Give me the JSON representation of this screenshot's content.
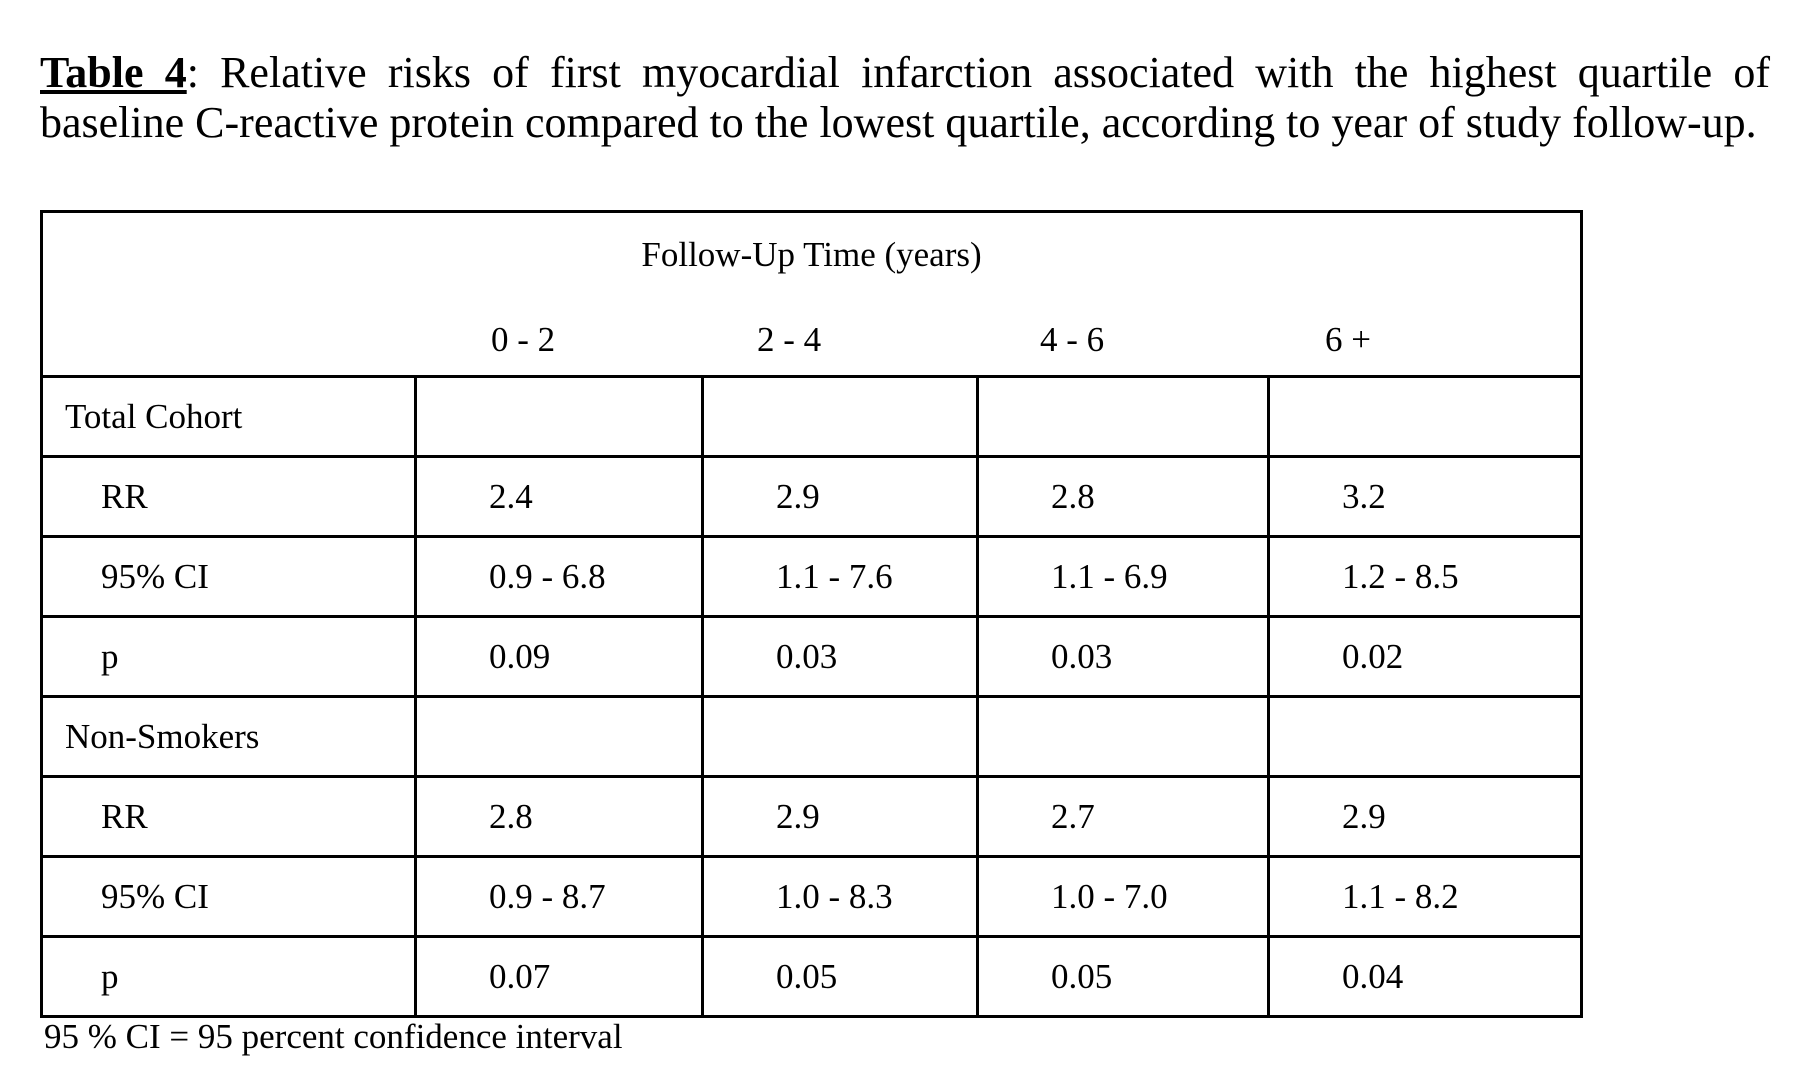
{
  "caption": {
    "label": "Table 4",
    "text": ":  Relative risks of first myocardial infarction associated with the highest quartile of baseline C-reactive protein compared to the lowest quartile, according to year of study follow-up."
  },
  "table": {
    "header": "Follow-Up Time (years)",
    "periods": [
      "0 - 2",
      "2 - 4",
      "4 - 6",
      "6 +"
    ],
    "rows": [
      {
        "label": "Total Cohort",
        "values": [
          "",
          "",
          "",
          ""
        ]
      },
      {
        "label": "RR",
        "values": [
          "2.4",
          "2.9",
          "2.8",
          "3.2"
        ]
      },
      {
        "label": "95% CI",
        "values": [
          "0.9 - 6.8",
          "1.1 - 7.6",
          "1.1 - 6.9",
          "1.2 - 8.5"
        ]
      },
      {
        "label": "p",
        "values": [
          "0.09",
          "0.03",
          "0.03",
          "0.02"
        ]
      },
      {
        "label": "Non-Smokers",
        "values": [
          "",
          "",
          "",
          ""
        ]
      },
      {
        "label": "RR",
        "values": [
          "2.8",
          "2.9",
          "2.7",
          "2.9"
        ]
      },
      {
        "label": "95% CI",
        "values": [
          "0.9 - 8.7",
          "1.0 - 8.3",
          "1.0 - 7.0",
          "1.1 - 8.2"
        ]
      },
      {
        "label": "p",
        "values": [
          "0.07",
          "0.05",
          "0.05",
          "0.04"
        ]
      }
    ]
  },
  "footnote": "95 % CI = 95 percent confidence interval"
}
